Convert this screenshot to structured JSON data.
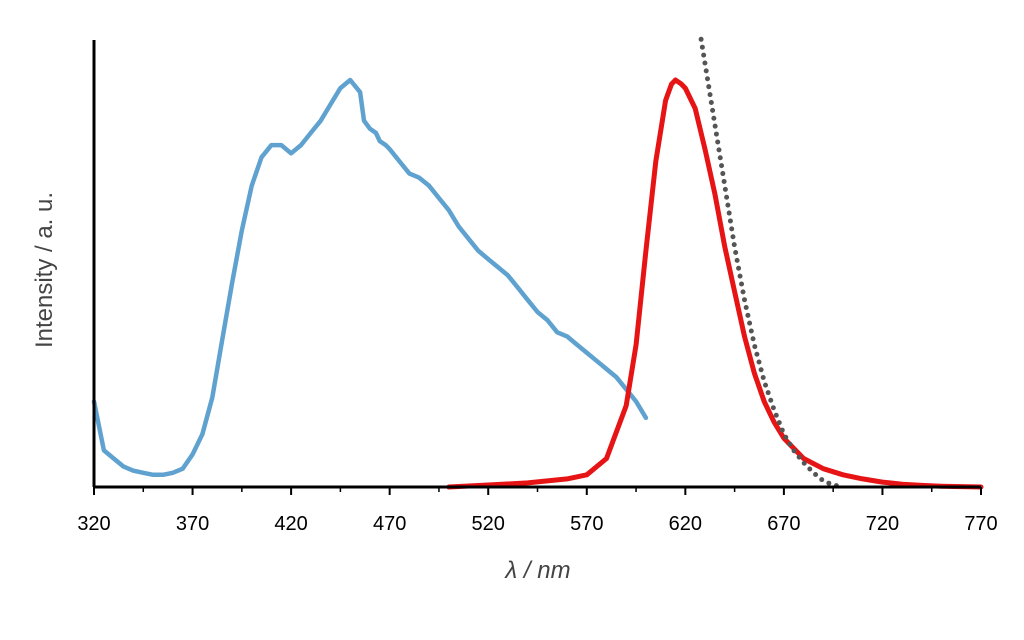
{
  "chart_data": {
    "type": "line",
    "xlabel": "λ / nm",
    "ylabel": "Intensity / a. u.",
    "xlim": [
      320,
      770
    ],
    "ylim": [
      0,
      1.1
    ],
    "x_ticks": [
      320,
      370,
      420,
      470,
      520,
      570,
      620,
      670,
      720,
      770
    ],
    "grid": false,
    "legend": "none",
    "series": [
      {
        "color": "#5fa2cf",
        "style": "solid",
        "x": [
          320,
          325,
          330,
          335,
          340,
          345,
          350,
          355,
          360,
          365,
          370,
          375,
          380,
          385,
          390,
          395,
          400,
          405,
          410,
          415,
          420,
          425,
          430,
          435,
          440,
          445,
          450,
          455,
          457,
          460,
          463,
          465,
          468,
          470,
          475,
          480,
          485,
          490,
          495,
          500,
          505,
          510,
          515,
          520,
          525,
          530,
          535,
          540,
          545,
          550,
          555,
          560,
          565,
          570,
          575,
          580,
          585,
          590,
          595,
          600
        ],
        "y": [
          0.21,
          0.09,
          0.07,
          0.05,
          0.04,
          0.035,
          0.03,
          0.03,
          0.035,
          0.045,
          0.08,
          0.13,
          0.22,
          0.36,
          0.5,
          0.63,
          0.74,
          0.81,
          0.84,
          0.84,
          0.82,
          0.84,
          0.87,
          0.9,
          0.94,
          0.98,
          1.0,
          0.97,
          0.9,
          0.88,
          0.87,
          0.85,
          0.84,
          0.83,
          0.8,
          0.77,
          0.76,
          0.74,
          0.71,
          0.68,
          0.64,
          0.61,
          0.58,
          0.56,
          0.54,
          0.52,
          0.49,
          0.46,
          0.43,
          0.41,
          0.38,
          0.37,
          0.35,
          0.33,
          0.31,
          0.29,
          0.27,
          0.24,
          0.21,
          0.17
        ]
      },
      {
        "color": "#e61414",
        "style": "solid",
        "x": [
          500,
          520,
          540,
          560,
          570,
          580,
          590,
          595,
          600,
          605,
          610,
          613,
          615,
          618,
          620,
          625,
          630,
          635,
          640,
          645,
          650,
          655,
          660,
          665,
          670,
          680,
          690,
          700,
          710,
          720,
          730,
          740,
          750,
          770
        ],
        "y": [
          0,
          0.005,
          0.01,
          0.02,
          0.03,
          0.07,
          0.2,
          0.35,
          0.58,
          0.8,
          0.95,
          0.99,
          1.0,
          0.99,
          0.98,
          0.93,
          0.83,
          0.72,
          0.59,
          0.48,
          0.37,
          0.28,
          0.21,
          0.16,
          0.12,
          0.07,
          0.045,
          0.03,
          0.02,
          0.012,
          0.007,
          0.004,
          0.002,
          0
        ]
      },
      {
        "color": "#555555",
        "style": "dotted",
        "x": [
          628,
          632,
          636,
          640,
          645,
          650,
          655,
          660,
          665,
          670,
          675,
          680,
          685,
          690,
          695,
          700
        ],
        "y": [
          1.1,
          0.98,
          0.86,
          0.74,
          0.59,
          0.46,
          0.35,
          0.26,
          0.19,
          0.13,
          0.09,
          0.06,
          0.035,
          0.015,
          0.005,
          0
        ]
      }
    ]
  }
}
